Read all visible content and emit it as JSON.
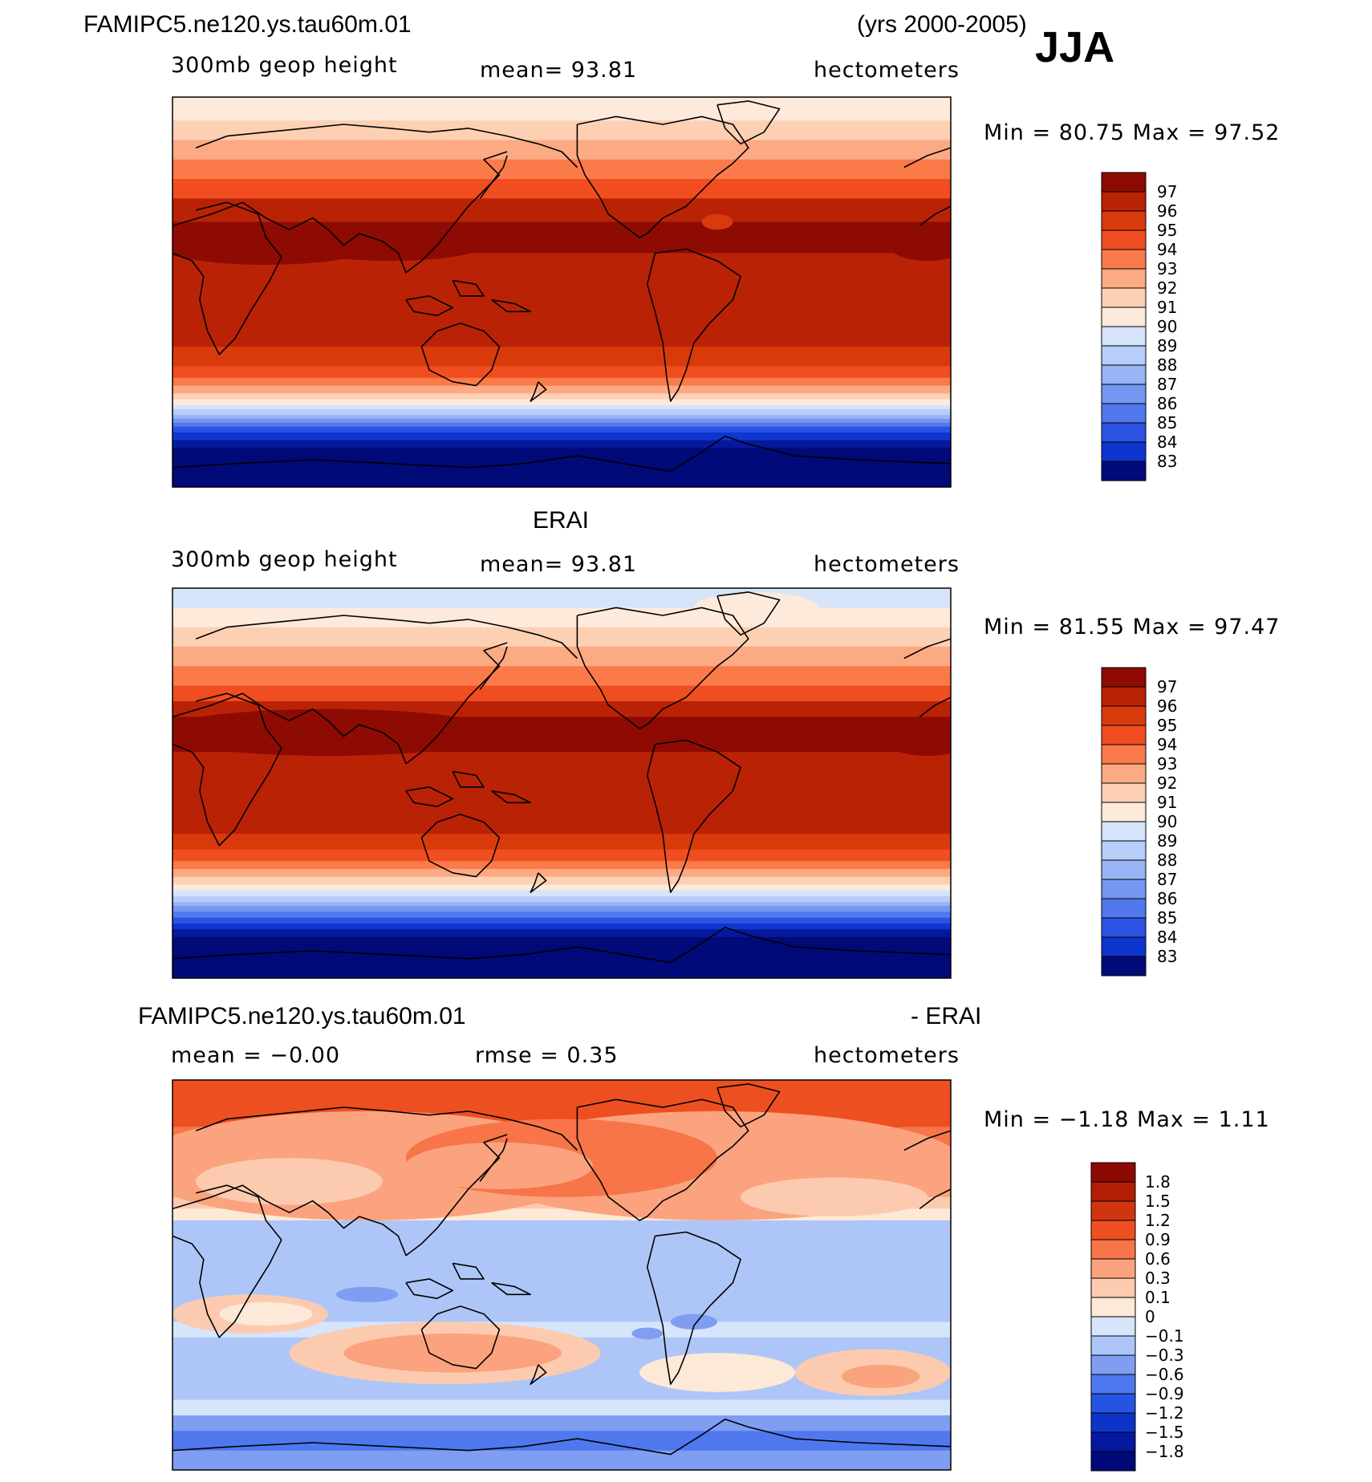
{
  "header": {
    "case": "FAMIPC5.ne120.ys.tau60m.01",
    "years": "(yrs 2000-2005)",
    "season": "JJA"
  },
  "panels": [
    {
      "title": "",
      "left": "300mb  geop  height",
      "center": "mean=   93.81",
      "right": "hectometers",
      "minmax": "Min =   80.75  Max =   97.52"
    },
    {
      "title": "ERAI",
      "left": "300mb  geop  height",
      "center": "mean=   93.81",
      "right": "hectometers",
      "minmax": "Min =   81.55  Max =   97.47"
    },
    {
      "title_left": "FAMIPC5.ne120.ys.tau60m.01",
      "title_right": "- ERAI",
      "left": "mean  =   −0.00",
      "center": "rmse  =     0.35",
      "right": "hectometers",
      "minmax": "Min =   −1.18  Max =     1.11"
    }
  ],
  "colors": {
    "warm": [
      "#fdeadb",
      "#fdd0b4",
      "#fcaa84",
      "#fb7a4a",
      "#f04e20",
      "#d83a0c",
      "#ba2206",
      "#8e0b03"
    ],
    "cool": [
      "#d5e4fb",
      "#b7cdfa",
      "#97b4f6",
      "#7597f2",
      "#5178ed",
      "#2b53e3",
      "#0f35cf",
      "#05199a",
      "#000a78"
    ],
    "diff": [
      "#00087a",
      "#0418a0",
      "#0c34c8",
      "#2454e2",
      "#4f78ee",
      "#7f9ef2",
      "#aec6f7",
      "#d6e5fb",
      "#fde9d8",
      "#fccbaf",
      "#fba37e",
      "#f77548",
      "#ee4f20",
      "#d13510",
      "#b01e06",
      "#8c0a03"
    ]
  },
  "chart_data": [
    {
      "type": "heatmap",
      "title": "FAMIPC5.ne120.ys.tau60m.01 300mb geop height JJA",
      "units": "hectometers",
      "mean": 93.81,
      "min": 80.75,
      "max": 97.52,
      "levels": [
        "97",
        "96",
        "95",
        "94",
        "93",
        "92",
        "91",
        "90",
        "89",
        "88",
        "87",
        "86",
        "85",
        "84",
        "83"
      ]
    },
    {
      "type": "heatmap",
      "title": "ERAI 300mb geop height JJA",
      "units": "hectometers",
      "mean": 93.81,
      "min": 81.55,
      "max": 97.47,
      "levels": [
        "97",
        "96",
        "95",
        "94",
        "93",
        "92",
        "91",
        "90",
        "89",
        "88",
        "87",
        "86",
        "85",
        "84",
        "83"
      ]
    },
    {
      "type": "heatmap",
      "title": "FAMIPC5.ne120.ys.tau60m.01 - ERAI",
      "units": "hectometers",
      "mean": -0.0,
      "rmse": 0.35,
      "min": -1.18,
      "max": 1.11,
      "levels": [
        "1.8",
        "1.5",
        "1.2",
        "0.9",
        "0.6",
        "0.3",
        "0.1",
        "0",
        "−0.1",
        "−0.3",
        "−0.6",
        "−0.9",
        "−1.2",
        "−1.5",
        "−1.8"
      ]
    }
  ]
}
